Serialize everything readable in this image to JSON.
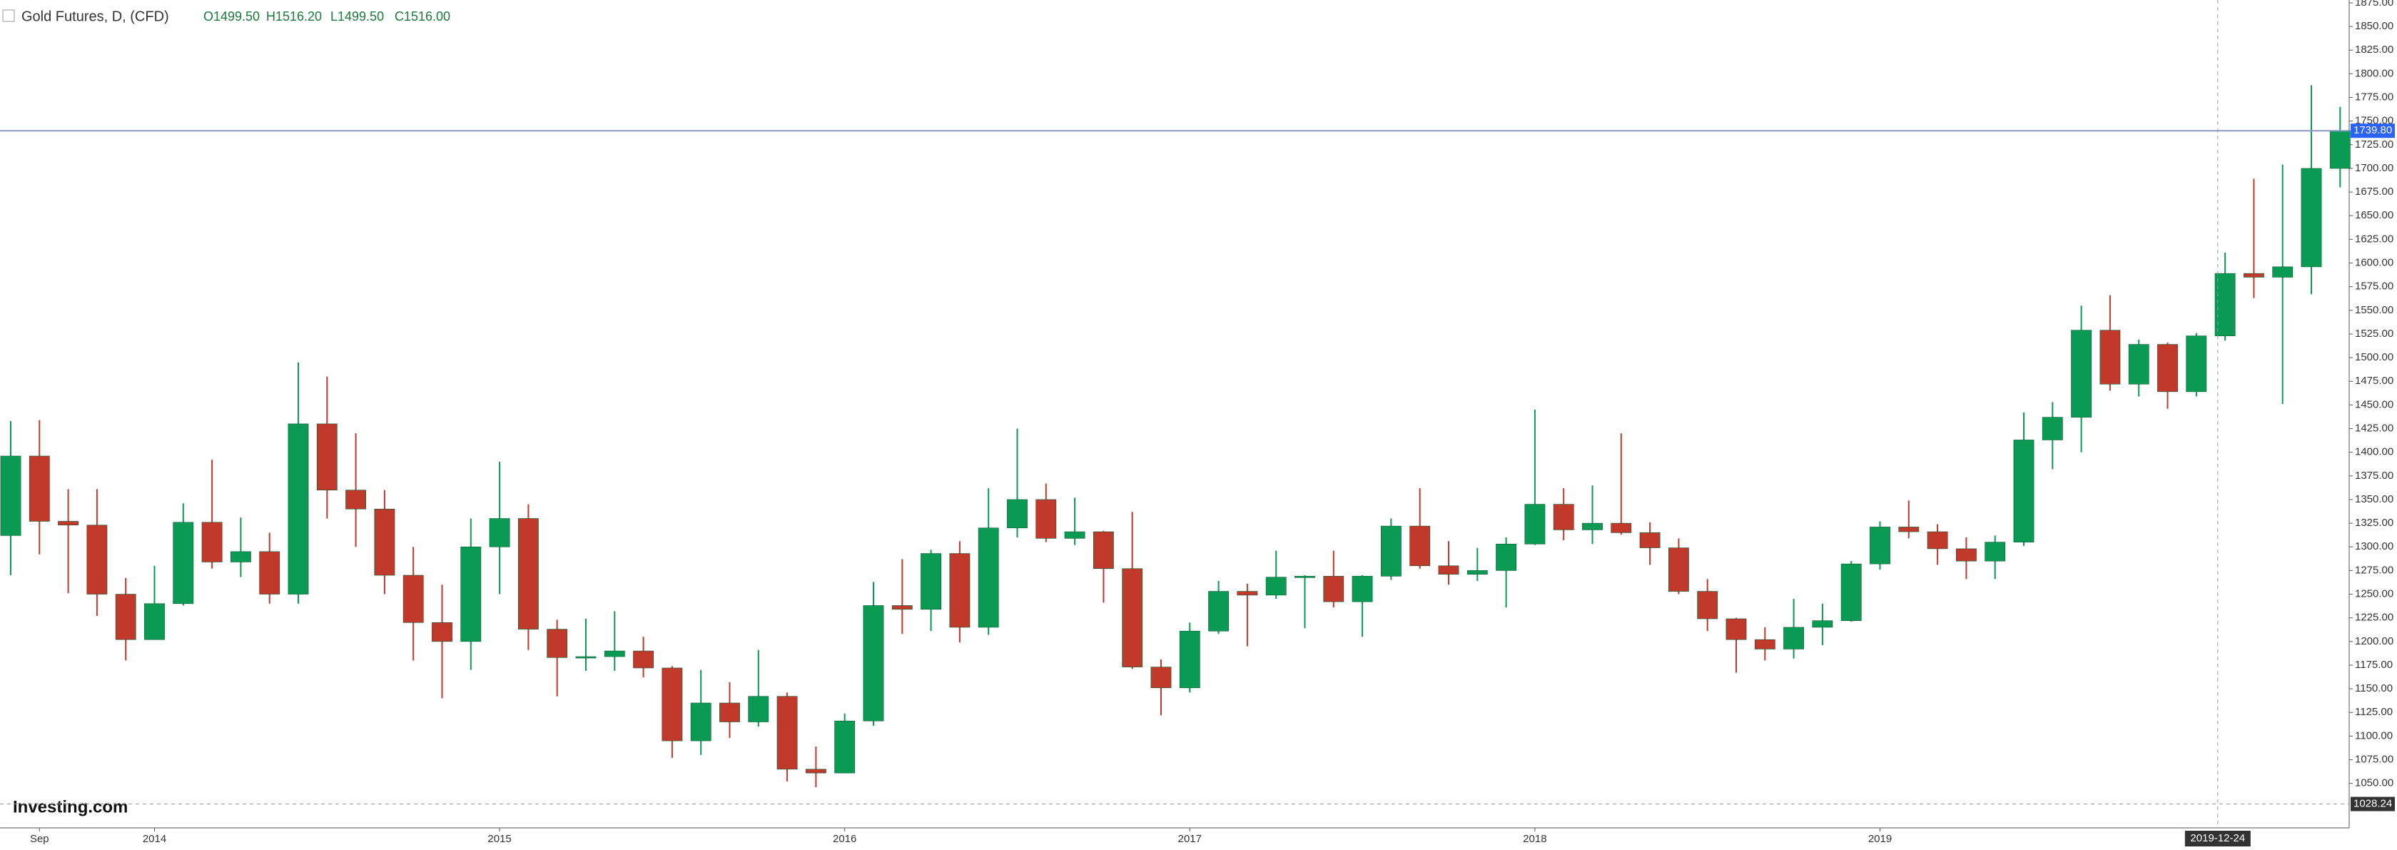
{
  "chart_data": {
    "type": "candlestick",
    "title": "Gold Futures, D, (CFD)",
    "ohlc_labels": [
      "O1499.50",
      "H1516.20",
      "L1499.50",
      "C1516.00"
    ],
    "logo": "Investing.com",
    "categories": [
      null,
      "Sep",
      null,
      null,
      null,
      "2014",
      null,
      null,
      null,
      null,
      null,
      null,
      null,
      null,
      null,
      null,
      null,
      "2015",
      null,
      null,
      null,
      null,
      null,
      null,
      null,
      null,
      null,
      null,
      null,
      "2016",
      null,
      null,
      null,
      null,
      null,
      null,
      null,
      null,
      null,
      null,
      null,
      "2017",
      null,
      null,
      null,
      null,
      null,
      null,
      null,
      null,
      null,
      null,
      null,
      "2018",
      null,
      null,
      null,
      null,
      null,
      null,
      null,
      null,
      null,
      null,
      null,
      "2019",
      null,
      null,
      null,
      null,
      null,
      null,
      null,
      null,
      null,
      null,
      null,
      null,
      null,
      null,
      null,
      null
    ],
    "open": [
      1312,
      1396,
      1327,
      1323,
      1250,
      1202,
      1240,
      1326,
      1284,
      1295,
      1250,
      1430,
      1360,
      1340,
      1270,
      1220,
      1200,
      1300,
      1330,
      1213,
      1183,
      1184,
      1190,
      1172,
      1095,
      1135,
      1115,
      1142,
      1065,
      1061,
      1116,
      1238,
      1234,
      1293,
      1215,
      1320,
      1350,
      1309,
      1316,
      1277,
      1173,
      1151,
      1211,
      1253,
      1249,
      1268,
      1269,
      1242,
      1269,
      1322,
      1280,
      1271,
      1275,
      1303,
      1345,
      1318,
      1325,
      1315,
      1299,
      1253,
      1224,
      1202,
      1192,
      1215,
      1222,
      1282,
      1321,
      1316,
      1298,
      1285,
      1305,
      1413,
      1437,
      1529,
      1472,
      1514,
      1464,
      1523,
      1589,
      1585,
      1596,
      1700
    ],
    "high": [
      1433,
      1434,
      1361,
      1361,
      1267,
      1280,
      1346,
      1392,
      1331,
      1315,
      1495,
      1480,
      1420,
      1360,
      1300,
      1260,
      1330,
      1390,
      1345,
      1223,
      1224,
      1232,
      1205,
      1174,
      1170,
      1157,
      1191,
      1146,
      1089,
      1124,
      1263,
      1287,
      1297,
      1306,
      1362,
      1425,
      1367,
      1352,
      1317,
      1337,
      1181,
      1220,
      1264,
      1261,
      1296,
      1270,
      1296,
      1270,
      1330,
      1362,
      1306,
      1299,
      1310,
      1445,
      1362,
      1365,
      1420,
      1326,
      1309,
      1266,
      1225,
      1215,
      1245,
      1240,
      1285,
      1327,
      1349,
      1324,
      1310,
      1312,
      1442,
      1453,
      1555,
      1566,
      1519,
      1516,
      1526,
      1611,
      1689,
      1704,
      1788,
      1765
    ],
    "low": [
      1270,
      1292,
      1251,
      1227,
      1180,
      1202,
      1238,
      1277,
      1268,
      1240,
      1240,
      1330,
      1300,
      1250,
      1180,
      1140,
      1170,
      1250,
      1191,
      1142,
      1169,
      1169,
      1162,
      1077,
      1080,
      1098,
      1110,
      1052,
      1046,
      1061,
      1111,
      1208,
      1211,
      1199,
      1207,
      1310,
      1305,
      1302,
      1241,
      1171,
      1122,
      1146,
      1208,
      1195,
      1245,
      1214,
      1236,
      1205,
      1265,
      1277,
      1260,
      1264,
      1236,
      1302,
      1307,
      1303,
      1313,
      1281,
      1250,
      1211,
      1167,
      1180,
      1182,
      1196,
      1221,
      1276,
      1309,
      1281,
      1266,
      1266,
      1301,
      1382,
      1400,
      1465,
      1459,
      1446,
      1459,
      1518,
      1563,
      1451,
      1567,
      1680
    ],
    "close": [
      1396,
      1327,
      1323,
      1250,
      1202,
      1240,
      1326,
      1284,
      1295,
      1250,
      1430,
      1360,
      1340,
      1270,
      1220,
      1200,
      1300,
      1330,
      1213,
      1183,
      1184,
      1190,
      1172,
      1095,
      1135,
      1115,
      1142,
      1065,
      1061,
      1116,
      1238,
      1234,
      1293,
      1215,
      1320,
      1350,
      1309,
      1316,
      1277,
      1173,
      1151,
      1211,
      1253,
      1249,
      1268,
      1269,
      1242,
      1269,
      1322,
      1280,
      1271,
      1275,
      1303,
      1345,
      1318,
      1325,
      1315,
      1299,
      1253,
      1224,
      1202,
      1192,
      1215,
      1222,
      1282,
      1321,
      1316,
      1298,
      1285,
      1305,
      1413,
      1437,
      1529,
      1472,
      1514,
      1464,
      1523,
      1589,
      1585,
      1596,
      1700,
      1740
    ],
    "up_color": "#0b9a54",
    "down_color": "#c0392b",
    "ylim": [
      1003,
      1878
    ],
    "yticks": [
      {
        "value": 1050,
        "label": "1050.00"
      },
      {
        "value": 1075,
        "label": "1075.00"
      },
      {
        "value": 1100,
        "label": "1100.00"
      },
      {
        "value": 1125,
        "label": "1125.00"
      },
      {
        "value": 1150,
        "label": "1150.00"
      },
      {
        "value": 1175,
        "label": "1175.00"
      },
      {
        "value": 1200,
        "label": "1200.00"
      },
      {
        "value": 1225,
        "label": "1225.00"
      },
      {
        "value": 1250,
        "label": "1250.00"
      },
      {
        "value": 1275,
        "label": "1275.00"
      },
      {
        "value": 1300,
        "label": "1300.00"
      },
      {
        "value": 1325,
        "label": "1325.00"
      },
      {
        "value": 1350,
        "label": "1350.00"
      },
      {
        "value": 1375,
        "label": "1375.00"
      },
      {
        "value": 1400,
        "label": "1400.00"
      },
      {
        "value": 1425,
        "label": "1425.00"
      },
      {
        "value": 1450,
        "label": "1450.00"
      },
      {
        "value": 1475,
        "label": "1475.00"
      },
      {
        "value": 1500,
        "label": "1500.00"
      },
      {
        "value": 1525,
        "label": "1525.00"
      },
      {
        "value": 1550,
        "label": "1550.00"
      },
      {
        "value": 1575,
        "label": "1575.00"
      },
      {
        "value": 1600,
        "label": "1600.00"
      },
      {
        "value": 1625,
        "label": "1625.00"
      },
      {
        "value": 1650,
        "label": "1650.00"
      },
      {
        "value": 1675,
        "label": "1675.00"
      },
      {
        "value": 1700,
        "label": "1700.00"
      },
      {
        "value": 1725,
        "label": "1725.00"
      },
      {
        "value": 1750,
        "label": "1750.00"
      },
      {
        "value": 1775,
        "label": "1775.00"
      },
      {
        "value": 1800,
        "label": "1800.00"
      },
      {
        "value": 1825,
        "label": "1825.00"
      },
      {
        "value": 1850,
        "label": "1850.00"
      },
      {
        "value": 1875,
        "label": "1875.00"
      }
    ],
    "price_line": {
      "value": 1739.8,
      "label": "1739.80"
    },
    "crosshair": {
      "x_label": "2019-12-24",
      "x_index": 76,
      "y": {
        "value": 1028.24,
        "label": "1028.24"
      }
    }
  }
}
